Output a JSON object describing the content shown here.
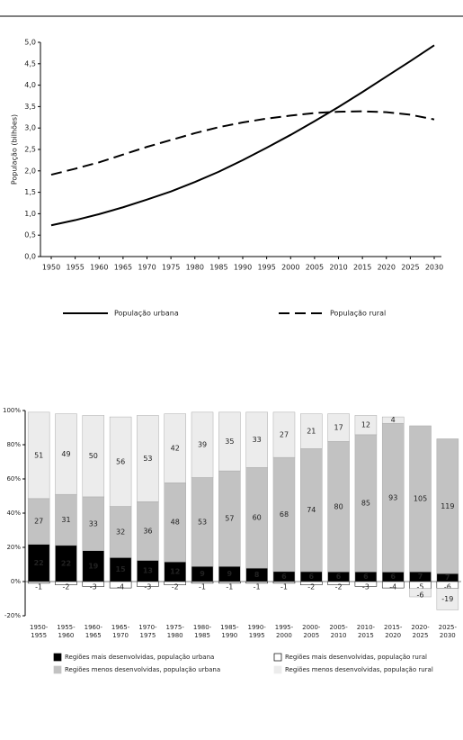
{
  "chart_data": [
    {
      "type": "line",
      "y_label": "População (bilhões)",
      "x": [
        1950,
        1955,
        1960,
        1965,
        1970,
        1975,
        1980,
        1985,
        1990,
        1995,
        2000,
        2005,
        2010,
        2015,
        2020,
        2025,
        2030
      ],
      "xlim": [
        1950,
        2030
      ],
      "xticks": [
        1950,
        1955,
        1960,
        1965,
        1970,
        1975,
        1980,
        1985,
        1990,
        1995,
        2000,
        2005,
        2010,
        2015,
        2020,
        2025,
        2030
      ],
      "ylim": [
        0,
        5
      ],
      "yticks": [
        {
          "value": 0,
          "label": "0,0"
        },
        {
          "value": 0.5,
          "label": "0,5"
        },
        {
          "value": 1,
          "label": "1,0"
        },
        {
          "value": 1.5,
          "label": "1,5"
        },
        {
          "value": 2,
          "label": "2,0"
        },
        {
          "value": 2.5,
          "label": "2,5"
        },
        {
          "value": 3,
          "label": "3,0"
        },
        {
          "value": 3.5,
          "label": "3,5"
        },
        {
          "value": 4,
          "label": "4,0"
        },
        {
          "value": 4.5,
          "label": "4,5"
        },
        {
          "value": 5,
          "label": "5,0"
        }
      ],
      "series": [
        {
          "name": "População urbana",
          "color": "#000000",
          "line_style": "solid",
          "values": [
            0.73,
            0.85,
            0.99,
            1.15,
            1.33,
            1.52,
            1.74,
            1.98,
            2.25,
            2.54,
            2.84,
            3.16,
            3.49,
            3.84,
            4.2,
            4.56,
            4.93
          ]
        },
        {
          "name": "População rural",
          "color": "#000000",
          "line_style": "dashed",
          "values": [
            1.91,
            2.05,
            2.2,
            2.38,
            2.56,
            2.72,
            2.88,
            3.02,
            3.13,
            3.22,
            3.29,
            3.35,
            3.38,
            3.39,
            3.37,
            3.31,
            3.2
          ]
        }
      ]
    },
    {
      "type": "bar",
      "stacked": true,
      "normalized": true,
      "categories": [
        "1950-1955",
        "1955-1960",
        "1960-1965",
        "1965-1970",
        "1970-1975",
        "1975-1980",
        "1980-1985",
        "1985-1990",
        "1990-1995",
        "1995-2000",
        "2000-2005",
        "2005-2010",
        "2010-2015",
        "2015-2020",
        "2020-2025",
        "2025-2030"
      ],
      "ylim": [
        -20,
        100
      ],
      "yticks": [
        {
          "value": -20,
          "label": "-20%"
        },
        {
          "value": 0,
          "label": "0%"
        },
        {
          "value": 20,
          "label": "20%"
        },
        {
          "value": 40,
          "label": "40%"
        },
        {
          "value": 60,
          "label": "60%"
        },
        {
          "value": 80,
          "label": "80%"
        },
        {
          "value": 100,
          "label": "100%"
        }
      ],
      "series": [
        {
          "name": "Regiões mais desenvolvidas, população urbana",
          "color": "#000000",
          "values": [
            22,
            22,
            19,
            15,
            13,
            12,
            9,
            9,
            8,
            6,
            6,
            6,
            6,
            6,
            7,
            7
          ]
        },
        {
          "name": "Regiões mais desenvolvidas, população rural",
          "color": "#ffffff",
          "values": [
            -1,
            -2,
            -3,
            -4,
            -3,
            -2,
            -1,
            -1,
            -1,
            -1,
            -2,
            -2,
            -3,
            -4,
            -5,
            -6
          ]
        },
        {
          "name": "Regiões menos desenvolvidas, população urbana",
          "color": "#c2c2c2",
          "values": [
            27,
            31,
            33,
            32,
            36,
            48,
            53,
            57,
            60,
            68,
            74,
            80,
            85,
            93,
            105,
            119
          ]
        },
        {
          "name": "Regiões menos desenvolvidas, população rural",
          "color": "#ececec",
          "values": [
            51,
            49,
            50,
            56,
            53,
            42,
            39,
            35,
            33,
            27,
            21,
            17,
            12,
            4,
            -6,
            -19
          ]
        }
      ]
    }
  ]
}
